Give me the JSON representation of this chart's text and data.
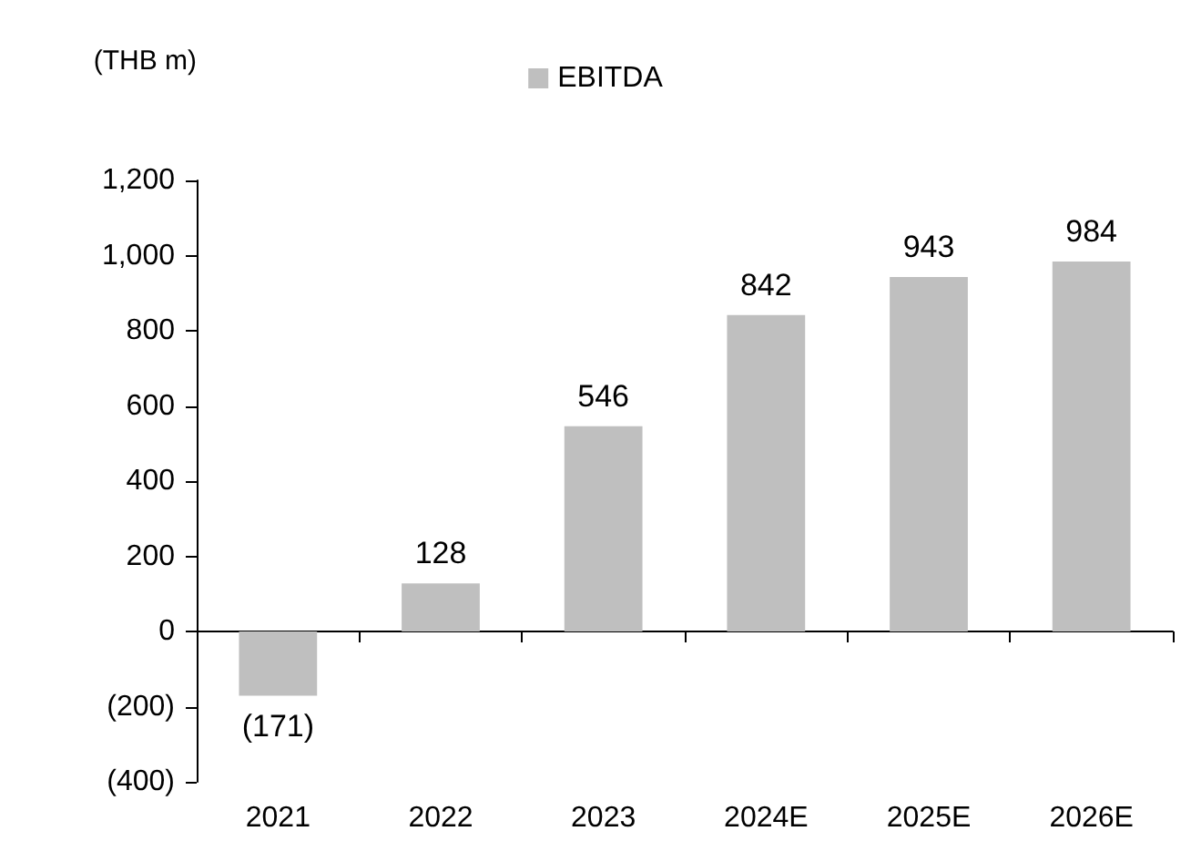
{
  "chart_data": {
    "type": "bar",
    "ylabel": "(THB m)",
    "categories": [
      "2021",
      "2022",
      "2023",
      "2024E",
      "2025E",
      "2026E"
    ],
    "series": [
      {
        "name": "EBITDA",
        "color": "#bfbfbf",
        "values": [
          -171,
          128,
          546,
          842,
          943,
          984
        ],
        "value_labels": [
          "(171)",
          "128",
          "546",
          "842",
          "943",
          "984"
        ]
      }
    ],
    "ylim": [
      -400,
      1200
    ],
    "yticks": [
      {
        "value": -400,
        "label": "(400)"
      },
      {
        "value": -200,
        "label": "(200)"
      },
      0,
      200,
      400,
      600,
      800,
      {
        "value": 1000,
        "label": "1,000"
      },
      {
        "value": 1200,
        "label": "1,200"
      }
    ],
    "legend": "top"
  }
}
